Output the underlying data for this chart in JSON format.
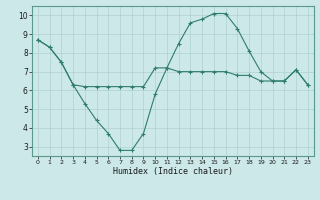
{
  "xlabel": "Humidex (Indice chaleur)",
  "x": [
    0,
    1,
    2,
    3,
    4,
    5,
    6,
    7,
    8,
    9,
    10,
    11,
    12,
    13,
    14,
    15,
    16,
    17,
    18,
    19,
    20,
    21,
    22,
    23
  ],
  "line1": [
    8.7,
    8.3,
    7.5,
    6.3,
    6.2,
    6.2,
    6.2,
    6.2,
    6.2,
    6.2,
    7.2,
    7.2,
    7.0,
    7.0,
    7.0,
    7.0,
    7.0,
    6.8,
    6.8,
    6.5,
    6.5,
    6.5,
    7.1,
    6.3
  ],
  "line2": [
    8.7,
    8.3,
    7.5,
    6.3,
    5.3,
    4.4,
    3.7,
    2.8,
    2.8,
    3.7,
    5.8,
    7.2,
    8.5,
    9.6,
    9.8,
    10.1,
    10.1,
    9.3,
    8.1,
    7.0,
    6.5,
    6.5,
    7.1,
    6.3
  ],
  "line_color": "#2e7d6e",
  "bg_color": "#cce8e8",
  "grid_color": "#b0d0d0",
  "ylim": [
    2.5,
    10.5
  ],
  "xlim": [
    -0.5,
    23.5
  ],
  "yticks": [
    3,
    4,
    5,
    6,
    7,
    8,
    9,
    10
  ],
  "xticks": [
    0,
    1,
    2,
    3,
    4,
    5,
    6,
    7,
    8,
    9,
    10,
    11,
    12,
    13,
    14,
    15,
    16,
    17,
    18,
    19,
    20,
    21,
    22,
    23
  ]
}
